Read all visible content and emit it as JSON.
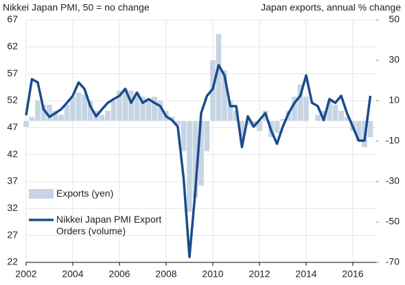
{
  "chart_data": {
    "type": "combo",
    "title": "Nikkei Japan PMI, 50 = no change",
    "y2_title": "Japan exports, annual % change",
    "x": [
      2002,
      2002.25,
      2002.5,
      2002.75,
      2003,
      2003.25,
      2003.5,
      2003.75,
      2004,
      2004.25,
      2004.5,
      2004.75,
      2005,
      2005.25,
      2005.5,
      2005.75,
      2006,
      2006.25,
      2006.5,
      2006.75,
      2007,
      2007.25,
      2007.5,
      2007.75,
      2008,
      2008.25,
      2008.5,
      2008.75,
      2009,
      2009.25,
      2009.5,
      2009.75,
      2010,
      2010.25,
      2010.5,
      2010.75,
      2011,
      2011.25,
      2011.5,
      2011.75,
      2012,
      2012.25,
      2012.5,
      2012.75,
      2013,
      2013.25,
      2013.5,
      2013.75,
      2014,
      2014.25,
      2014.5,
      2014.75,
      2015,
      2015.25,
      2015.5,
      2015.75,
      2016,
      2016.25,
      2016.5,
      2016.75
    ],
    "series": [
      {
        "name": "Exports (yen)",
        "type": "bar",
        "axis": "y2",
        "color": "#c6d4e3",
        "values": [
          -3,
          2,
          10,
          8,
          8,
          5,
          3,
          8,
          12,
          14,
          13,
          10,
          5,
          3,
          5,
          10,
          15,
          16,
          15,
          14,
          12,
          10,
          12,
          10,
          5,
          2,
          -2,
          -15,
          -45,
          -38,
          -32,
          -15,
          30,
          43,
          25,
          10,
          5,
          -10,
          -2,
          -3,
          -5,
          5,
          -8,
          -6,
          1,
          5,
          12,
          18,
          12,
          0,
          3,
          5,
          10,
          8,
          5,
          2,
          -5,
          -10,
          -13,
          -8
        ]
      },
      {
        "name": "Nikkei Japan PMI Export Orders (volume)",
        "type": "line",
        "axis": "y",
        "color": "#1a4b8c",
        "values": [
          49.3,
          56,
          55.4,
          50.4,
          49,
          49.7,
          50.4,
          51.6,
          52.9,
          55.4,
          54.2,
          51,
          49.1,
          50.4,
          51.6,
          52.3,
          52.9,
          54.2,
          51.6,
          53.5,
          51.6,
          52.3,
          51.6,
          51,
          49.1,
          48.4,
          47.2,
          37.6,
          23,
          35.1,
          49.7,
          52.9,
          54.2,
          58.6,
          56.7,
          51,
          51,
          43.4,
          49.1,
          47.2,
          48.4,
          49.7,
          46.5,
          44,
          47.2,
          49.7,
          51.6,
          52.9,
          56.7,
          51.6,
          51,
          48.4,
          52.3,
          51.6,
          52.9,
          49.7,
          47.2,
          44.6,
          44.6,
          52.9
        ]
      }
    ],
    "xlim": [
      2002,
      2017
    ],
    "xticks": [
      2002,
      2004,
      2006,
      2008,
      2010,
      2012,
      2014,
      2016
    ],
    "ylim": [
      22,
      67
    ],
    "yticks": [
      22,
      27,
      32,
      37,
      42,
      47,
      52,
      57,
      62,
      67
    ],
    "y2lim": [
      -70,
      50
    ],
    "y2ticks": [
      -70,
      -50,
      -30,
      -10,
      10,
      30,
      50
    ],
    "grid": true,
    "legend": "lower left"
  }
}
